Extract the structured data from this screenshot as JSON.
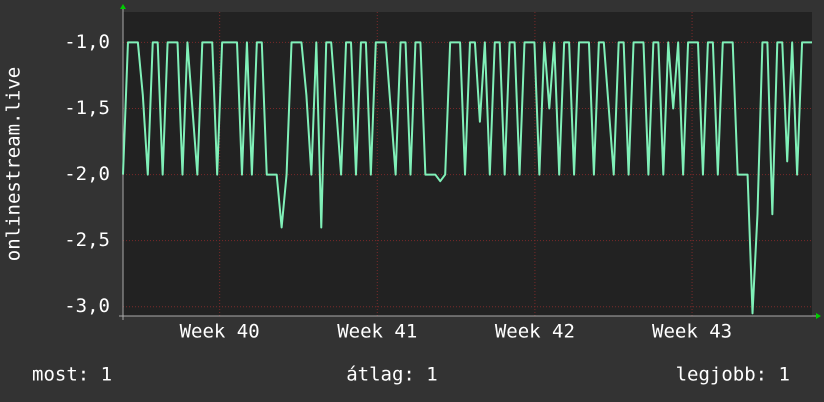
{
  "chart_data": {
    "type": "line",
    "y_label": "onlinestream.live",
    "series": [
      {
        "name": "onlinestream.live",
        "color": "#80f0b8",
        "values": [
          -2,
          -1,
          -1,
          -1,
          -1.4,
          -2,
          -1,
          -1,
          -2,
          -1,
          -1,
          -1,
          -2,
          -1,
          -1.5,
          -2,
          -1,
          -1,
          -1,
          -2,
          -1,
          -1,
          -1,
          -1,
          -2,
          -1,
          -2,
          -1,
          -1,
          -2,
          -2,
          -2,
          -2.4,
          -2,
          -1,
          -1,
          -1,
          -1.4,
          -2,
          -1,
          -2.4,
          -1,
          -1,
          -1.5,
          -2,
          -1,
          -1,
          -2,
          -1,
          -1,
          -2,
          -1,
          -1,
          -1,
          -1.5,
          -2,
          -1,
          -1,
          -2,
          -1,
          -1,
          -2,
          -2,
          -2,
          -2.05,
          -2,
          -1,
          -1,
          -1,
          -2,
          -1,
          -1,
          -1.6,
          -1,
          -2,
          -1,
          -1,
          -2,
          -1,
          -1,
          -2,
          -1,
          -1,
          -1,
          -2,
          -1,
          -1.5,
          -1,
          -2,
          -1,
          -1,
          -2,
          -1,
          -1,
          -1,
          -2,
          -1,
          -1,
          -1.5,
          -2,
          -1,
          -1,
          -2,
          -1,
          -1,
          -1,
          -2,
          -1,
          -1,
          -2,
          -1,
          -1.5,
          -1,
          -2,
          -1,
          -1,
          -1,
          -2,
          -1,
          -1,
          -2,
          -1,
          -1,
          -1,
          -2,
          -2,
          -2,
          -3.05,
          -2.3,
          -1,
          -1,
          -2.3,
          -1,
          -1,
          -1.9,
          -1,
          -2,
          -1,
          -1,
          -1
        ]
      }
    ],
    "xlim": [
      0,
      139
    ],
    "xticks": [
      {
        "value": 19.5,
        "label": "Week 40"
      },
      {
        "value": 51.3,
        "label": "Week 41"
      },
      {
        "value": 83.1,
        "label": "Week 42"
      },
      {
        "value": 114.8,
        "label": "Week 43"
      }
    ],
    "ylim": [
      -3.07,
      -0.77
    ],
    "yticks": [
      {
        "value": -3,
        "label": "-3,0"
      },
      {
        "value": -2.5,
        "label": "-2,5"
      },
      {
        "value": -2,
        "label": "-2,0"
      },
      {
        "value": -1.5,
        "label": "-1,5"
      },
      {
        "value": -1,
        "label": "-1,0"
      }
    ],
    "grid": true,
    "stats": [
      "most: 1",
      "átlag: 1",
      "legjobb: 1"
    ]
  }
}
